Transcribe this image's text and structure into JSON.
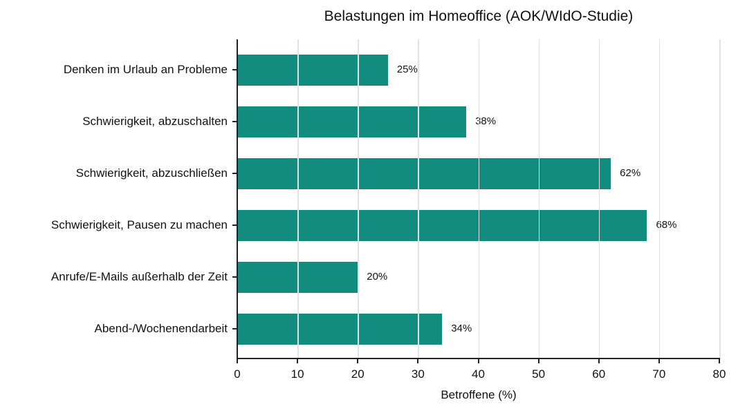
{
  "chart_data": {
    "type": "bar",
    "orientation": "horizontal",
    "title": "Belastungen im Homeoffice (AOK/WIdO-Studie)",
    "xlabel": "Betroffene (%)",
    "ylabel": "",
    "categories": [
      "Denken im Urlaub an Probleme",
      "Schwierigkeit, abzuschalten",
      "Schwierigkeit, abzuschließen",
      "Schwierigkeit, Pausen zu machen",
      "Anrufe/E-Mails außerhalb der Zeit",
      "Abend-/Wochenendarbeit"
    ],
    "values": [
      25,
      38,
      62,
      68,
      20,
      34
    ],
    "value_labels": [
      "25%",
      "38%",
      "62%",
      "68%",
      "20%",
      "34%"
    ],
    "xlim": [
      0,
      80
    ],
    "xticks": [
      0,
      10,
      20,
      30,
      40,
      50,
      60,
      70,
      80
    ],
    "grid": "vertical",
    "legend": "none",
    "bar_color": "#128C7E",
    "grid_color": "#E2E2E2"
  }
}
